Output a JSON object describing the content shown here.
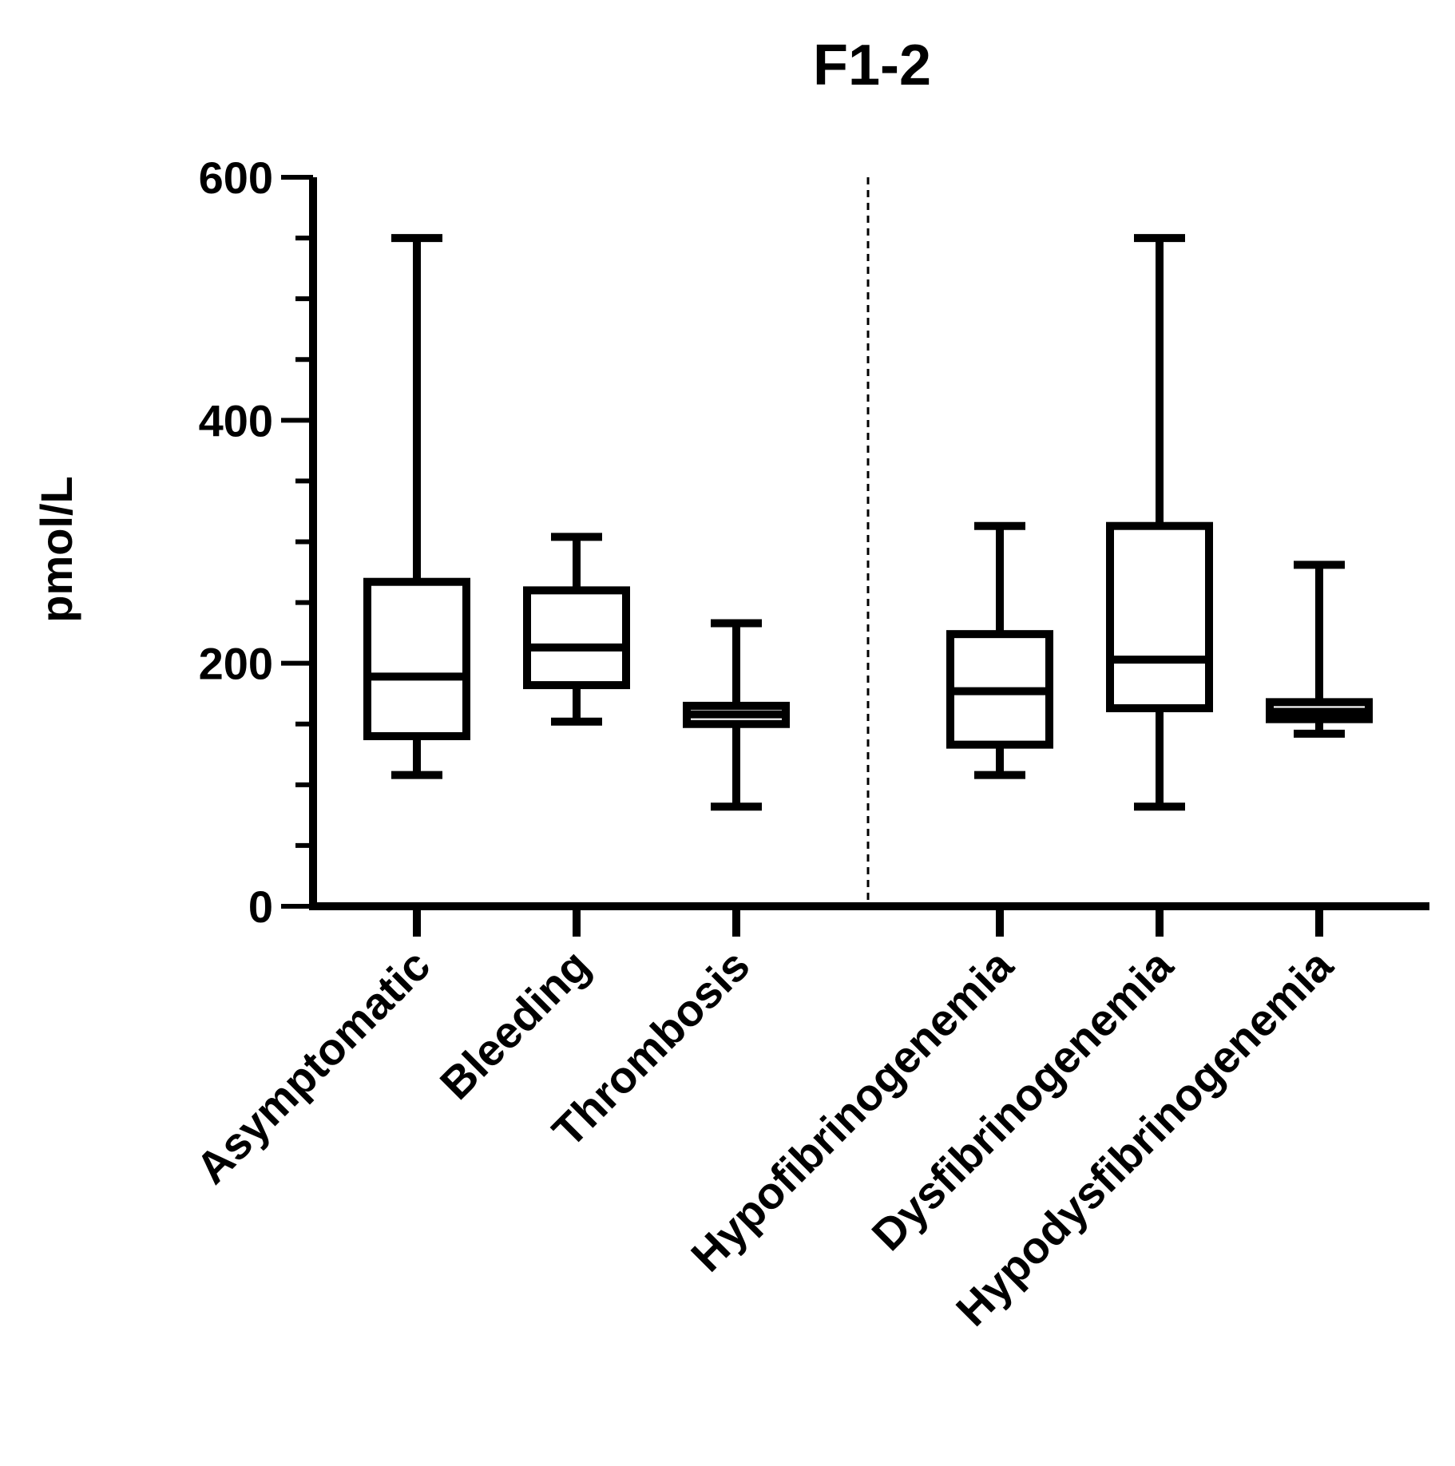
{
  "chart_data": {
    "type": "box",
    "title": "F1-2",
    "ylabel": "pmol/L",
    "xlabel": "",
    "ylim": [
      0,
      600
    ],
    "yticks_major": [
      0,
      200,
      400,
      600
    ],
    "yticks_minor_step": 50,
    "grid": false,
    "separator_after_category": 3,
    "categories": [
      "Asymptomatic",
      "Bleeding",
      "Thrombosis",
      "Hypofibrinogenemia",
      "Dysfibrinogenemia",
      "Hypodysfibrinogenemia"
    ],
    "boxes": [
      {
        "min": 108,
        "q1": 140,
        "median": 189,
        "q3": 267,
        "max": 550
      },
      {
        "min": 152,
        "q1": 182,
        "median": 213,
        "q3": 260,
        "max": 304
      },
      {
        "min": 82,
        "q1": 150,
        "median": 158,
        "q3": 165,
        "max": 233
      },
      {
        "min": 108,
        "q1": 133,
        "median": 177,
        "q3": 224,
        "max": 313
      },
      {
        "min": 82,
        "q1": 163,
        "median": 203,
        "q3": 313,
        "max": 550
      },
      {
        "min": 142,
        "q1": 154,
        "median": 160,
        "q3": 168,
        "max": 281
      }
    ]
  }
}
